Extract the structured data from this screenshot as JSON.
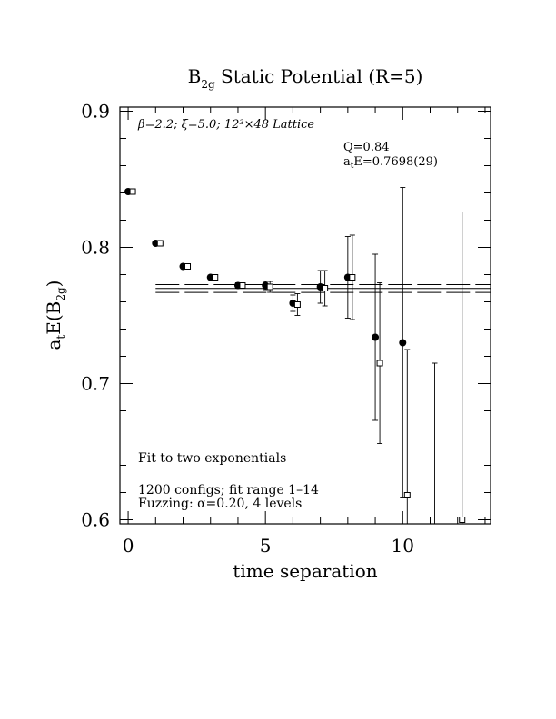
{
  "chart_data": {
    "type": "scatter",
    "title_main": "B",
    "title_sub": "2g",
    "title_rest": " Static Potential (R=5)",
    "ylabel_pre": "a",
    "ylabel_sub1": "t",
    "ylabel_mid": "E(B",
    "ylabel_sub2": "2g",
    "ylabel_post": ")",
    "xlabel": "time separation",
    "xlim": [
      -0.3,
      13.2
    ],
    "ylim": [
      0.597,
      0.903
    ],
    "xticks": [
      0,
      5,
      10
    ],
    "yticks": [
      0.6,
      0.7,
      0.8,
      0.9
    ],
    "xtick_labels": [
      "0",
      "5",
      "10"
    ],
    "ytick_labels": [
      "0.6",
      "0.7",
      "0.8",
      "0.9"
    ],
    "annotations": {
      "lattice": "β=2.2; ξ=5.0; 12³×48 Lattice",
      "q": "Q=0.84",
      "energy_pre": "a",
      "energy_sub": "t",
      "energy_post": "E=0.7698(29)",
      "fit": "Fit to two exponentials",
      "configs": "1200 configs; fit range 1–14",
      "fuzzing": "Fuzzing: α=0.20, 4 levels"
    },
    "fit": {
      "value": 0.7698,
      "upper": 0.7727,
      "lower": 0.7669,
      "x_range": [
        1,
        14
      ]
    },
    "series": [
      {
        "marker": "filled-circle",
        "points": [
          {
            "x": 0,
            "y": 0.841,
            "err": 0.001
          },
          {
            "x": 1,
            "y": 0.803,
            "err": 0.001
          },
          {
            "x": 2,
            "y": 0.786,
            "err": 0.001
          },
          {
            "x": 3,
            "y": 0.778,
            "err": 0.001
          },
          {
            "x": 4,
            "y": 0.772,
            "err": 0.002
          },
          {
            "x": 5,
            "y": 0.772,
            "err": 0.003
          },
          {
            "x": 6,
            "y": 0.759,
            "err": 0.006
          },
          {
            "x": 7,
            "y": 0.771,
            "err": 0.012
          },
          {
            "x": 8,
            "y": 0.778,
            "err": 0.03
          },
          {
            "x": 9,
            "y": 0.734,
            "err": 0.061
          },
          {
            "x": 10,
            "y": 0.73,
            "err": 0.114
          }
        ]
      },
      {
        "marker": "open-square",
        "points": [
          {
            "x": 0,
            "y": 0.841,
            "err": 0.001
          },
          {
            "x": 1,
            "y": 0.803,
            "err": 0.001
          },
          {
            "x": 2,
            "y": 0.786,
            "err": 0.001
          },
          {
            "x": 3,
            "y": 0.778,
            "err": 0.001
          },
          {
            "x": 4,
            "y": 0.772,
            "err": 0.002
          },
          {
            "x": 5,
            "y": 0.771,
            "err": 0.004
          },
          {
            "x": 6,
            "y": 0.758,
            "err": 0.008
          },
          {
            "x": 7,
            "y": 0.77,
            "err": 0.013
          },
          {
            "x": 8,
            "y": 0.778,
            "err": 0.031
          },
          {
            "x": 9,
            "y": 0.715,
            "err": 0.059
          },
          {
            "x": 10,
            "y": 0.618,
            "err": 0.107
          },
          {
            "x": 11,
            "y": 0.57,
            "err": 0.145
          },
          {
            "x": 12,
            "y": 0.6,
            "err": 0.226
          }
        ]
      }
    ]
  }
}
